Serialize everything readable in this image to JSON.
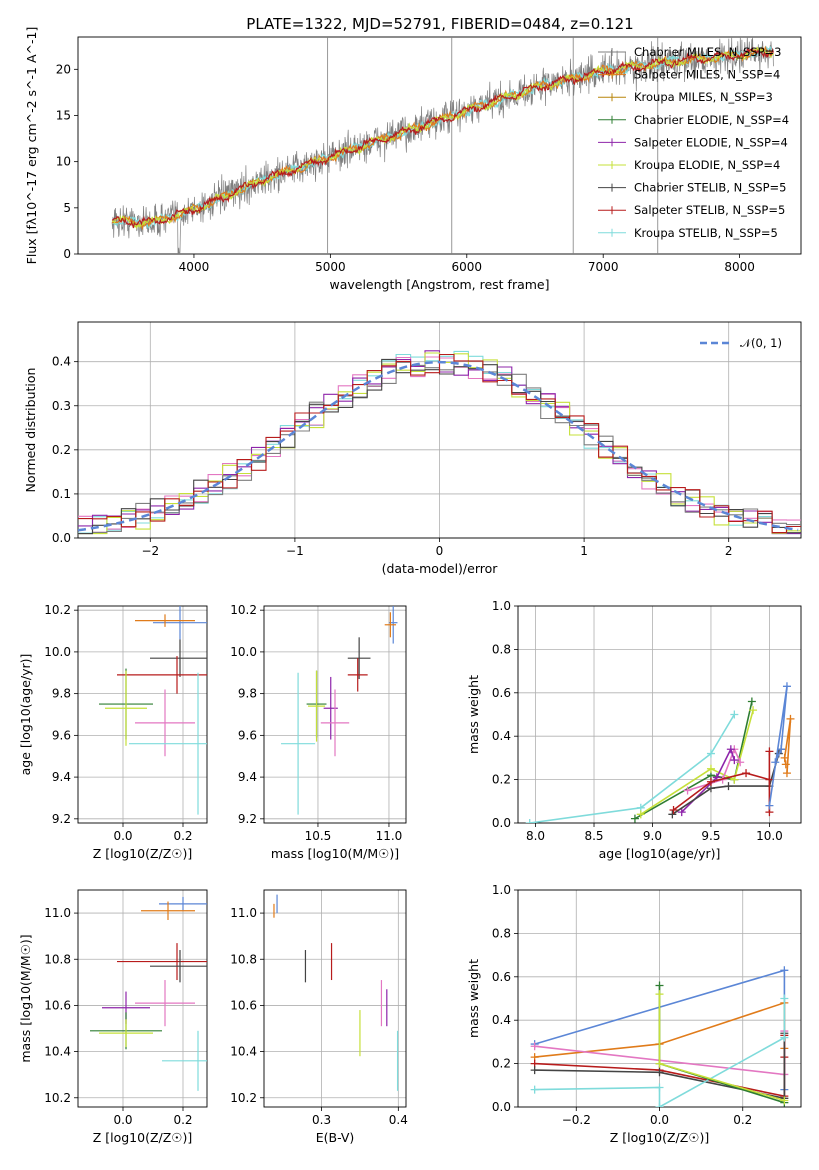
{
  "title": "PLATE=1322, MJD=52791, FIBERID=0484, z=0.121",
  "colors": {
    "chabrier_miles": "#7f7f7f",
    "salpeter_miles": "#e07b1a",
    "kroupa_miles": "#b8860b",
    "chabrier_elodie": "#2e7d32",
    "salpeter_elodie": "#8e24aa",
    "kroupa_elodie": "#c6e03a",
    "chabrier_stelib": "#444444",
    "salpeter_stelib": "#b71c1c",
    "kroupa_stelib": "#7fdbdb",
    "blue": "#5b86d6",
    "pink": "#e377c2",
    "grid": "#b0b0b0"
  },
  "chart_data": [
    {
      "id": "spectrum",
      "type": "line",
      "xlabel": "wavelength [Angstrom, rest frame]",
      "ylabel": "Flux [fλ10^-17 erg cm^-2 s^-1 A^-1]",
      "xlim": [
        3150,
        8450
      ],
      "ylim": [
        0,
        23.5
      ],
      "xticks": [
        "4000",
        "5000",
        "6000",
        "7000",
        "8000"
      ],
      "yticks": [
        "0",
        "5",
        "10",
        "15",
        "20"
      ],
      "legend_position": "top-right",
      "legend": [
        "Chabrier MILES, N_SSP=3",
        "Salpeter MILES, N_SSP=4",
        "Kroupa MILES, N_SSP=3",
        "Chabrier ELODIE, N_SSP=4",
        "Salpeter ELODIE, N_SSP=4",
        "Kroupa ELODIE, N_SSP=4",
        "Chabrier STELIB, N_SSP=5",
        "Salpeter STELIB, N_SSP=5",
        "Kroupa STELIB, N_SSP=5"
      ],
      "model_trend": {
        "x": [
          3400,
          3700,
          4000,
          4500,
          5000,
          5500,
          6000,
          6500,
          7000,
          7500,
          8000,
          8250
        ],
        "y": [
          3.6,
          3.4,
          4.8,
          8.0,
          10.5,
          13.0,
          15.5,
          18.0,
          19.8,
          20.8,
          21.6,
          22.0
        ]
      }
    },
    {
      "id": "residuals",
      "type": "line",
      "xlabel": "(data-model)/error",
      "ylabel": "Normed distribution",
      "xlim": [
        -2.5,
        2.5
      ],
      "ylim": [
        0,
        0.49
      ],
      "xticks": [
        "−2",
        "−1",
        "0",
        "1",
        "2"
      ],
      "yticks": [
        "0.0",
        "0.1",
        "0.2",
        "0.3",
        "0.4"
      ],
      "legend": [
        "𝒩(0, 1)"
      ],
      "legend_position": "top-right",
      "grid": true
    },
    {
      "id": "age_vs_Z",
      "type": "scatter",
      "xlabel": "Z [log10(Z/Z☉)]",
      "ylabel": "age  [log10(age/yr)]",
      "xlim": [
        -0.15,
        0.28
      ],
      "ylim": [
        9.18,
        10.22
      ],
      "xticks": [
        "0.0",
        "0.2"
      ],
      "yticks": [
        "9.2",
        "9.4",
        "9.6",
        "9.8",
        "10.0",
        "10.2"
      ],
      "points": [
        {
          "c": "blue",
          "x": 0.19,
          "dx": 0.09,
          "y": 10.14,
          "dy": 0.08
        },
        {
          "c": "salpeter_miles",
          "x": 0.14,
          "dx": 0.1,
          "y": 10.15,
          "dy": 0.03
        },
        {
          "c": "chabrier_stelib",
          "x": 0.19,
          "dx": 0.1,
          "y": 9.97,
          "dy": 0.09
        },
        {
          "c": "salpeter_stelib",
          "x": 0.18,
          "dx": 0.2,
          "y": 9.89,
          "dy": 0.09
        },
        {
          "c": "chabrier_elodie",
          "x": 0.01,
          "dx": 0.09,
          "y": 9.75,
          "dy": 0.17
        },
        {
          "c": "kroupa_elodie",
          "x": 0.01,
          "dx": 0.07,
          "y": 9.73,
          "dy": 0.18
        },
        {
          "c": "pink",
          "x": 0.14,
          "dx": 0.1,
          "y": 9.66,
          "dy": 0.16
        },
        {
          "c": "kroupa_stelib",
          "x": 0.25,
          "dx": 0.23,
          "y": 9.56,
          "dy": 0.34
        }
      ]
    },
    {
      "id": "age_vs_mass",
      "type": "scatter",
      "xlabel": "mass [log10(M/M☉)]",
      "ylabel": "",
      "xlim": [
        10.12,
        11.12
      ],
      "ylim": [
        9.18,
        10.22
      ],
      "xticks": [
        "10.5",
        "11.0"
      ],
      "yticks": [
        "9.2",
        "9.4",
        "9.6",
        "9.8",
        "10.0",
        "10.2"
      ],
      "points": [
        {
          "c": "blue",
          "x": 11.03,
          "dx": 0.03,
          "y": 10.14,
          "dy": 0.1
        },
        {
          "c": "salpeter_miles",
          "x": 11.01,
          "dx": 0.04,
          "y": 10.13,
          "dy": 0.06
        },
        {
          "c": "chabrier_stelib",
          "x": 10.79,
          "dx": 0.08,
          "y": 9.97,
          "dy": 0.1
        },
        {
          "c": "salpeter_stelib",
          "x": 10.78,
          "dx": 0.07,
          "y": 9.89,
          "dy": 0.08
        },
        {
          "c": "chabrier_elodie",
          "x": 10.49,
          "dx": 0.07,
          "y": 9.75,
          "dy": 0.16
        },
        {
          "c": "kroupa_elodie",
          "x": 10.49,
          "dx": 0.06,
          "y": 9.74,
          "dy": 0.17
        },
        {
          "c": "salpeter_elodie",
          "x": 10.59,
          "dx": 0.05,
          "y": 9.73,
          "dy": 0.15
        },
        {
          "c": "pink",
          "x": 10.62,
          "dx": 0.1,
          "y": 9.66,
          "dy": 0.16
        },
        {
          "c": "kroupa_stelib",
          "x": 10.36,
          "dx": 0.12,
          "y": 9.56,
          "dy": 0.34
        }
      ]
    },
    {
      "id": "weight_vs_age",
      "type": "line",
      "xlabel": "age  [log10(age/yr)]",
      "ylabel": "mass weight",
      "xlim": [
        7.85,
        10.27
      ],
      "ylim": [
        0,
        1
      ],
      "xticks": [
        "8.0",
        "8.5",
        "9.0",
        "9.5",
        "10.0"
      ],
      "yticks": [
        "0.0",
        "0.2",
        "0.4",
        "0.6",
        "0.8",
        "1.0"
      ],
      "series": [
        {
          "c": "kroupa_stelib",
          "x": [
            7.95,
            8.9,
            9.5,
            9.7
          ],
          "y": [
            0.0,
            0.07,
            0.32,
            0.5
          ]
        },
        {
          "c": "chabrier_elodie",
          "x": [
            8.85,
            9.5,
            9.7,
            9.85
          ],
          "y": [
            0.02,
            0.22,
            0.2,
            0.56
          ]
        },
        {
          "c": "kroupa_elodie",
          "x": [
            8.9,
            9.5,
            9.7,
            9.86
          ],
          "y": [
            0.04,
            0.25,
            0.2,
            0.52
          ]
        },
        {
          "c": "pink",
          "x": [
            9.3,
            9.6,
            9.7,
            9.75
          ],
          "y": [
            0.15,
            0.2,
            0.34,
            0.28
          ]
        },
        {
          "c": "salpeter_elodie",
          "x": [
            9.25,
            9.55,
            9.67,
            9.7
          ],
          "y": [
            0.05,
            0.21,
            0.34,
            0.29
          ]
        },
        {
          "c": "chabrier_stelib",
          "x": [
            9.17,
            9.5,
            9.65,
            10.0,
            10.08,
            10.1
          ],
          "y": [
            0.04,
            0.16,
            0.17,
            0.17,
            0.32,
            0.34
          ]
        },
        {
          "c": "salpeter_stelib",
          "x": [
            9.18,
            9.5,
            9.8,
            10.0,
            10.0,
            10.0
          ],
          "y": [
            0.06,
            0.19,
            0.23,
            0.2,
            0.33,
            0.05
          ]
        },
        {
          "c": "blue",
          "x": [
            10.0,
            10.15,
            10.1,
            10.05
          ],
          "y": [
            0.08,
            0.63,
            0.34,
            0.28
          ]
        },
        {
          "c": "salpeter_miles",
          "x": [
            10.15,
            10.18,
            10.13,
            10.14
          ],
          "y": [
            0.23,
            0.48,
            0.3,
            0.27
          ]
        }
      ]
    },
    {
      "id": "mass_vs_Z",
      "type": "scatter",
      "xlabel": "Z [log10(Z/Z☉)]",
      "ylabel": "mass [log10(M/M☉)]",
      "xlim": [
        -0.15,
        0.28
      ],
      "ylim": [
        10.16,
        11.1
      ],
      "xticks": [
        "0.0",
        "0.2"
      ],
      "yticks": [
        "10.2",
        "10.4",
        "10.6",
        "10.8",
        "11.0"
      ],
      "points": [
        {
          "c": "blue",
          "x": 0.2,
          "dx": 0.08,
          "y": 11.04,
          "dy": 0.03
        },
        {
          "c": "salpeter_miles",
          "x": 0.15,
          "dx": 0.09,
          "y": 11.01,
          "dy": 0.04
        },
        {
          "c": "salpeter_stelib",
          "x": 0.18,
          "dx": 0.2,
          "y": 10.79,
          "dy": 0.08
        },
        {
          "c": "chabrier_stelib",
          "x": 0.19,
          "dx": 0.1,
          "y": 10.77,
          "dy": 0.07
        },
        {
          "c": "pink",
          "x": 0.14,
          "dx": 0.1,
          "y": 10.61,
          "dy": 0.1
        },
        {
          "c": "salpeter_elodie",
          "x": 0.01,
          "dx": 0.08,
          "y": 10.59,
          "dy": 0.07
        },
        {
          "c": "chabrier_elodie",
          "x": 0.01,
          "dx": 0.12,
          "y": 10.49,
          "dy": 0.08
        },
        {
          "c": "kroupa_elodie",
          "x": 0.01,
          "dx": 0.09,
          "y": 10.48,
          "dy": 0.06
        },
        {
          "c": "kroupa_stelib",
          "x": 0.25,
          "dx": 0.12,
          "y": 10.36,
          "dy": 0.13
        }
      ]
    },
    {
      "id": "mass_vs_EBV",
      "type": "scatter",
      "xlabel": "E(B-V)",
      "ylabel": "",
      "xlim": [
        0.225,
        0.41
      ],
      "ylim": [
        10.16,
        11.1
      ],
      "xticks": [
        "0.3",
        "0.4"
      ],
      "yticks": [
        "10.2",
        "10.4",
        "10.6",
        "10.8",
        "11.0"
      ],
      "points": [
        {
          "c": "blue",
          "x": 0.242,
          "dx": 0.0,
          "y": 11.04,
          "dy": 0.04
        },
        {
          "c": "salpeter_miles",
          "x": 0.238,
          "dx": 0.0,
          "y": 11.01,
          "dy": 0.03
        },
        {
          "c": "chabrier_stelib",
          "x": 0.279,
          "dx": 0.0,
          "y": 10.77,
          "dy": 0.07
        },
        {
          "c": "salpeter_stelib",
          "x": 0.313,
          "dx": 0.0,
          "y": 10.79,
          "dy": 0.08
        },
        {
          "c": "salpeter_elodie",
          "x": 0.385,
          "dx": 0.0,
          "y": 10.59,
          "dy": 0.08
        },
        {
          "c": "pink",
          "x": 0.378,
          "dx": 0.0,
          "y": 10.61,
          "dy": 0.1
        },
        {
          "c": "kroupa_elodie",
          "x": 0.35,
          "dx": 0.0,
          "y": 10.48,
          "dy": 0.1
        },
        {
          "c": "kroupa_stelib",
          "x": 0.399,
          "dx": 0.0,
          "y": 10.36,
          "dy": 0.13
        }
      ]
    },
    {
      "id": "weight_vs_Z",
      "type": "line",
      "xlabel": "Z [log10(Z/Z☉)]",
      "ylabel": "mass weight",
      "xlim": [
        -0.34,
        0.34
      ],
      "ylim": [
        0,
        1
      ],
      "xticks": [
        "−0.2",
        "0.0",
        "0.2"
      ],
      "yticks": [
        "0.0",
        "0.2",
        "0.4",
        "0.6",
        "0.8",
        "1.0"
      ],
      "series": [
        {
          "c": "blue",
          "x": [
            -0.3,
            0.3,
            0.3
          ],
          "y": [
            0.29,
            0.63,
            0.08
          ]
        },
        {
          "c": "salpeter_miles",
          "x": [
            -0.3,
            0.0,
            0.3,
            0.3
          ],
          "y": [
            0.23,
            0.29,
            0.48,
            0.27
          ]
        },
        {
          "c": "pink",
          "x": [
            -0.3,
            0.3,
            0.3
          ],
          "y": [
            0.28,
            0.15,
            0.35
          ]
        },
        {
          "c": "salpeter_stelib",
          "x": [
            -0.3,
            0.0,
            0.3,
            0.3,
            0.3
          ],
          "y": [
            0.2,
            0.17,
            0.05,
            0.33,
            0.23
          ]
        },
        {
          "c": "chabrier_stelib",
          "x": [
            -0.3,
            0.0,
            0.3,
            0.3
          ],
          "y": [
            0.17,
            0.16,
            0.04,
            0.34
          ]
        },
        {
          "c": "kroupa_stelib",
          "x": [
            -0.3,
            0.0,
            0.0,
            0.3,
            0.3
          ],
          "y": [
            0.08,
            0.09,
            0.0,
            0.32,
            0.5
          ]
        },
        {
          "c": "chabrier_elodie",
          "x": [
            0.0,
            0.0,
            0.3
          ],
          "y": [
            0.56,
            0.2,
            0.02
          ]
        },
        {
          "c": "kroupa_elodie",
          "x": [
            0.0,
            0.0,
            0.3
          ],
          "y": [
            0.52,
            0.2,
            0.03
          ]
        }
      ]
    }
  ]
}
